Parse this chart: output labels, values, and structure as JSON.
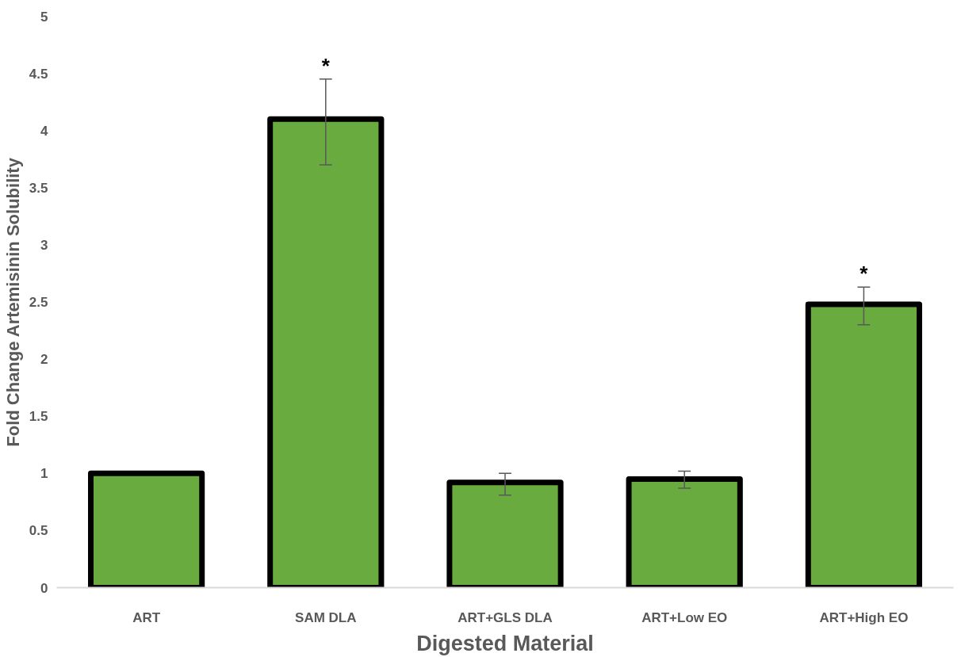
{
  "chart_data": {
    "type": "bar",
    "xlabel": "Digested Material",
    "ylabel": "Fold Change Artemisinin Solubility",
    "categories": [
      "ART",
      "SAM DLA",
      "ART+GLS DLA",
      "ART+Low EO",
      "ART+High EO"
    ],
    "values": [
      1.0,
      4.1,
      0.92,
      0.95,
      2.48
    ],
    "color": "#6aab3f",
    "errors": [
      null,
      [
        3.7,
        4.45
      ],
      [
        0.81,
        1.0
      ],
      [
        0.87,
        1.02
      ],
      [
        2.3,
        2.63
      ]
    ],
    "ylim": [
      0,
      5
    ],
    "yticks": [
      0,
      0.5,
      1,
      1.5,
      2,
      2.5,
      3,
      3.5,
      4,
      4.5,
      5
    ],
    "grid": false,
    "annotations": [
      {
        "text": "*",
        "x": "SAM DLA",
        "y": 4.45
      },
      {
        "text": "*",
        "x": "ART+High EO",
        "y": 2.63
      }
    ]
  }
}
